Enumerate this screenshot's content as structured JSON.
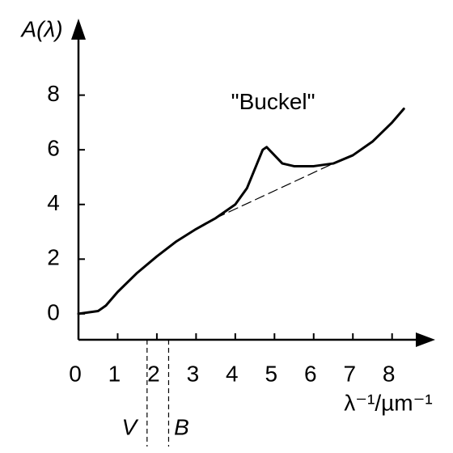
{
  "chart_data": {
    "type": "line",
    "y_label": "A(λ)",
    "x_label": "λ⁻¹/µm⁻¹",
    "xlim": [
      0,
      9.1
    ],
    "ylim": [
      -0.95,
      10.8
    ],
    "xticks": [
      0,
      1,
      2,
      3,
      4,
      5,
      6,
      7,
      8
    ],
    "yticks": [
      0,
      2,
      4,
      6,
      8
    ],
    "series": [
      {
        "color": "#000000",
        "style": "solid",
        "x": [
          0,
          0.5,
          0.7,
          1,
          1.5,
          2,
          2.5,
          3,
          3.5,
          4,
          4.3,
          4.5,
          4.7,
          4.8,
          5,
          5.2,
          5.5,
          6,
          6.5,
          7,
          7.5,
          8,
          8.3
        ],
        "values": [
          0,
          0.1,
          0.3,
          0.8,
          1.5,
          2.1,
          2.65,
          3.1,
          3.5,
          4.0,
          4.6,
          5.3,
          6.0,
          6.1,
          5.8,
          5.5,
          5.4,
          5.4,
          5.5,
          5.8,
          6.3,
          7.0,
          7.5
        ]
      },
      {
        "color": "#000000",
        "style": "dashed",
        "x": [
          3.5,
          6.5
        ],
        "values": [
          3.5,
          5.5
        ]
      }
    ],
    "annotations": [
      {
        "text": "\"Buckel\"",
        "x": 4.8,
        "y": 7.7
      }
    ],
    "markers": [
      {
        "label": "V",
        "x": 1.75
      },
      {
        "label": "B",
        "x": 2.3
      }
    ]
  }
}
